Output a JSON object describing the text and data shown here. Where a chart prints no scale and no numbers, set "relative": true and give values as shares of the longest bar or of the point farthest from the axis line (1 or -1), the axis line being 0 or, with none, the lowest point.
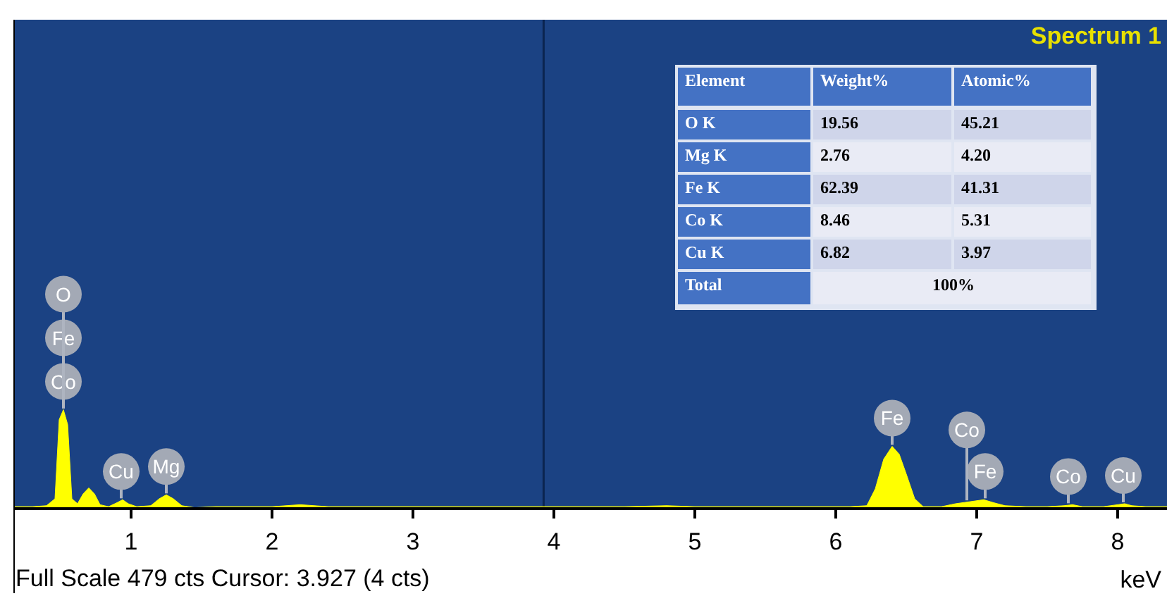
{
  "chart_data": [
    {
      "type": "area",
      "title": "Spectrum 1",
      "xlabel": "keV",
      "relative": true,
      "color": "#ffff00",
      "xlim": [
        0.17,
        8.35
      ],
      "xticks": [
        1,
        2,
        3,
        4,
        5,
        6,
        7,
        8
      ],
      "x": [
        0.17,
        0.3,
        0.4,
        0.46,
        0.49,
        0.52,
        0.55,
        0.58,
        0.62,
        0.66,
        0.7,
        0.74,
        0.78,
        0.84,
        0.9,
        0.94,
        0.98,
        1.04,
        1.14,
        1.2,
        1.25,
        1.3,
        1.36,
        1.45,
        1.6,
        1.8,
        2.0,
        2.1,
        2.2,
        2.3,
        2.4,
        2.6,
        2.8,
        3.0,
        3.3,
        3.6,
        3.9,
        4.2,
        4.5,
        4.8,
        5.0,
        5.3,
        5.6,
        5.9,
        6.1,
        6.22,
        6.28,
        6.34,
        6.4,
        6.45,
        6.5,
        6.56,
        6.62,
        6.75,
        6.85,
        6.95,
        7.05,
        7.12,
        7.2,
        7.35,
        7.5,
        7.62,
        7.68,
        7.75,
        7.9,
        8.0,
        8.05,
        8.1,
        8.2,
        8.35
      ],
      "values": [
        0.02,
        0.02,
        0.03,
        0.1,
        0.9,
        1.0,
        0.85,
        0.1,
        0.05,
        0.15,
        0.21,
        0.15,
        0.04,
        0.02,
        0.06,
        0.09,
        0.05,
        0.02,
        0.03,
        0.1,
        0.14,
        0.1,
        0.03,
        0.01,
        0.02,
        0.02,
        0.02,
        0.03,
        0.04,
        0.03,
        0.02,
        0.02,
        0.02,
        0.02,
        0.02,
        0.02,
        0.02,
        0.02,
        0.02,
        0.03,
        0.02,
        0.02,
        0.02,
        0.02,
        0.02,
        0.03,
        0.2,
        0.5,
        0.63,
        0.55,
        0.35,
        0.1,
        0.02,
        0.02,
        0.05,
        0.07,
        0.09,
        0.06,
        0.03,
        0.02,
        0.02,
        0.03,
        0.04,
        0.02,
        0.02,
        0.04,
        0.05,
        0.03,
        0.02,
        0.02
      ],
      "ref_lines": [
        {
          "axis": "x",
          "value": 3.927,
          "color": "#0b2550"
        }
      ],
      "annotations": [
        {
          "text": "Co",
          "x": 0.52,
          "y": 1.0
        },
        {
          "text": "Fe",
          "x": 0.52,
          "y": 1.0
        },
        {
          "text": "O",
          "x": 0.52,
          "y": 1.0
        },
        {
          "text": "Cu",
          "x": 0.93,
          "y": 0.09
        },
        {
          "text": "Mg",
          "x": 1.25,
          "y": 0.14
        },
        {
          "text": "Fe",
          "x": 6.4,
          "y": 0.63
        },
        {
          "text": "Fe",
          "x": 7.06,
          "y": 0.09
        },
        {
          "text": "Co",
          "x": 6.93,
          "y": 0.07
        },
        {
          "text": "Co",
          "x": 7.65,
          "y": 0.04
        },
        {
          "text": "Cu",
          "x": 8.04,
          "y": 0.05
        },
        "Full Scale 479 cts Cursor: 3.927  (4 cts)"
      ]
    },
    {
      "type": "other",
      "categories": [
        "Element",
        "Weight%",
        "Atomic%"
      ],
      "y_categories": [
        "O K",
        "Mg K",
        "Fe K",
        "Co K",
        "Cu K",
        "Total"
      ],
      "cell_labels": [
        [
          "19.56",
          "45.21"
        ],
        [
          "2.76",
          "4.20"
        ],
        [
          "62.39",
          "41.31"
        ],
        [
          "8.46",
          "5.31"
        ],
        [
          "6.82",
          "3.97"
        ],
        [
          "100%"
        ]
      ]
    }
  ]
}
